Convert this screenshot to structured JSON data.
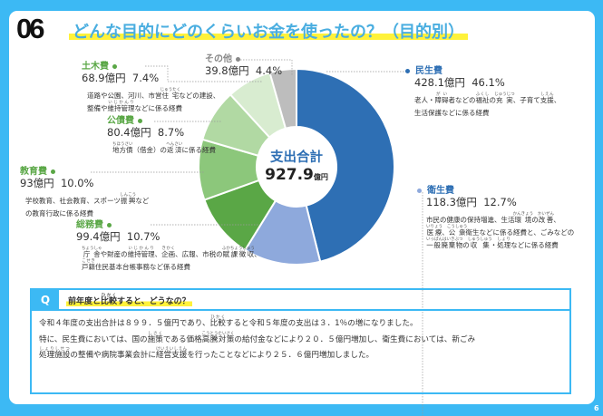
{
  "header": {
    "number": "06",
    "title": "どんな目的にどのくらいお金を使ったの？（目的別）"
  },
  "chart_data": {
    "type": "pie",
    "style": "donut",
    "center_label": "支出合計",
    "center_value": "927.9",
    "center_unit": "億円",
    "slices": [
      {
        "name": "民生費",
        "amount": "428.1億円",
        "percent": 46.1,
        "color": "#2e6fb4",
        "name_color": "#2e6fb4",
        "desc": [
          [
            "老人・"
          ],
          [
            "障碍",
            "がい"
          ],
          [
            "者などの"
          ],
          [
            "福祉",
            "ふくし"
          ],
          [
            "の"
          ],
          [
            "充実",
            "じゅうじつ"
          ],
          [
            "、子育て"
          ],
          [
            "支援",
            "しえん"
          ],
          [
            "、\n生活保護などに係る経費"
          ]
        ]
      },
      {
        "name": "衛生費",
        "amount": "118.3億円",
        "percent": 12.7,
        "color": "#8ea9dc",
        "name_color": "#2e6fb4",
        "desc": [
          [
            "市民の健康の保持増進、生活"
          ],
          [
            "環境",
            "かんきょう"
          ],
          [
            "の"
          ],
          [
            "改善",
            "かいぜん"
          ],
          [
            "、\n"
          ],
          [
            "医療",
            "いりょう"
          ],
          [
            "、"
          ],
          [
            "公衆",
            "こうしゅう"
          ],
          [
            "衛生などに係る経費と、ごみなどの\n"
          ],
          [
            "一般廃棄物",
            "いっぱんはいきぶつ"
          ],
          [
            "の"
          ],
          [
            "収集",
            "しゅうしゅう"
          ],
          [
            "・"
          ],
          [
            "処理",
            "しょり"
          ],
          [
            "などに係る経費"
          ]
        ]
      },
      {
        "name": "総務費",
        "amount": "99.4億円",
        "percent": 10.7,
        "color": "#5aa746",
        "name_color": "#5aa746",
        "desc": [
          [
            "庁舎",
            "ちょうしゃ"
          ],
          [
            "や財産の"
          ],
          [
            "維持管理",
            "いじかんり"
          ],
          [
            "、"
          ],
          [
            "企画",
            "きかく"
          ],
          [
            "、広報、市税の"
          ],
          [
            "賦課徴収",
            "ふかちょうしゅう"
          ],
          [
            "、\n"
          ],
          [
            "戸籍",
            "こせき"
          ],
          [
            "住民基本台帳事務など係る経費"
          ]
        ]
      },
      {
        "name": "教育費",
        "amount": "93億円",
        "percent": 10.0,
        "color": "#8cc77b",
        "name_color": "#5aa746",
        "desc": [
          [
            "学校教育、社会教育、スポーツ"
          ],
          [
            "振興",
            "しんこう"
          ],
          [
            "など\nの教育行政に係る経費"
          ]
        ]
      },
      {
        "name": "公債費",
        "name_ruby": "こうさいひ",
        "amount": "80.4億円",
        "percent": 8.7,
        "color": "#b1d9a3",
        "name_color": "#5aa746",
        "desc": [
          [
            "地方債",
            "ちほうさい"
          ],
          [
            "（借金）の"
          ],
          [
            "返済",
            "へんさい"
          ],
          [
            "に係る経費"
          ]
        ]
      },
      {
        "name": "土木費",
        "amount": "68.9億円",
        "percent": 7.4,
        "color": "#d8ecd0",
        "name_color": "#5aa746",
        "desc": [
          [
            "道路や公園、河川、市営"
          ],
          [
            "住宅",
            "じゅうたく"
          ],
          [
            "などの建設、\n"
          ],
          [
            "整備や"
          ],
          [
            "維持管理",
            "いじかんり"
          ],
          [
            "などに係る経費"
          ]
        ]
      },
      {
        "name": "その他",
        "amount": "39.8億円",
        "percent": 4.4,
        "color": "#bdbdbd",
        "name_color": "#888",
        "desc": []
      }
    ]
  },
  "question": {
    "label": "Q",
    "title": [
      [
        "前年度と"
      ],
      [
        "比較",
        "ひかく"
      ],
      [
        "すると、どうなの？"
      ]
    ],
    "body": [
      [
        "令和４年度の支出合計は８９９．５億円であり、"
      ],
      [
        "比較",
        "ひかく"
      ],
      [
        "すると令和５年度の支出は３．1％の増になりました。\n特に、民生費においては、国の"
      ],
      [
        "施策",
        "しさく"
      ],
      [
        "である価格"
      ],
      [
        "高騰対策",
        "こうとうたいさく"
      ],
      [
        "の給付金などにより２０．５億円増加し、衛生費においては、新ごみ\n"
      ],
      [
        "処理施設",
        "しょりしせつ"
      ],
      [
        "の整備や病院事業会計に"
      ],
      [
        "経営支援",
        "けいえいしえん"
      ],
      [
        "を行ったことなどにより２５．６億円増加しました。"
      ]
    ]
  },
  "page_number": "6"
}
